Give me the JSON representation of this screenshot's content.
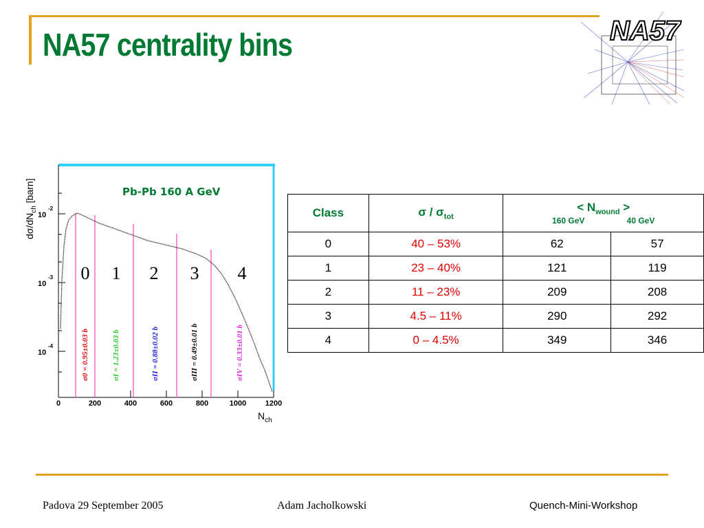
{
  "slide": {
    "title": "NA57 centrality bins",
    "logo_text": "NA57"
  },
  "plot": {
    "energy_label": "Pb-Pb 160 A GeV",
    "y_axis_label": "dσ/dN",
    "y_axis_sub": "ch",
    "y_axis_unit": "[barn]",
    "x_axis_label": "N",
    "x_axis_sub": "ch",
    "y_ticks": [
      "10",
      "10",
      "10"
    ],
    "y_tick_exps": [
      "-2",
      "-3",
      "-4"
    ],
    "x_ticks": [
      "0",
      "200",
      "400",
      "600",
      "800",
      "1000",
      "1200"
    ],
    "bin_numbers": [
      "0",
      "1",
      "2",
      "3",
      "4"
    ],
    "sigma_labels": [
      {
        "text": "σ0 = 0.95±0.03 b",
        "color": "#e00000"
      },
      {
        "text": "σI = 1.23±0.03 b",
        "color": "#22cc22"
      },
      {
        "text": "σII = 0.88±0.02 b",
        "color": "#1a1aee"
      },
      {
        "text": "σIII = 0.49±0.01 b",
        "color": "#000000"
      },
      {
        "text": "σIV = 0.33±0.01 b",
        "color": "#dd22dd"
      }
    ]
  },
  "table": {
    "headers": {
      "class": "Class",
      "sigma": "σ / σ",
      "sigma_sub": "tot",
      "nwound": "< N",
      "nwound_sub": "wound",
      "nwound_end": " >",
      "energy1": "160 GeV",
      "energy2": "40 GeV"
    },
    "rows": [
      {
        "cls": "0",
        "frac": "40 – 53%",
        "n160": "62",
        "n40": "57"
      },
      {
        "cls": "1",
        "frac": "23 – 40%",
        "n160": "121",
        "n40": "119"
      },
      {
        "cls": "2",
        "frac": "11 – 23%",
        "n160": "209",
        "n40": "208"
      },
      {
        "cls": "3",
        "frac": "4.5 – 11%",
        "n160": "290",
        "n40": "292"
      },
      {
        "cls": "4",
        "frac": "0 – 4.5%",
        "n160": "349",
        "n40": "346"
      }
    ]
  },
  "footer": {
    "left": "Padova 29 September 2005",
    "center": "Adam Jacholkowski",
    "right": "Quench-Mini-Workshop"
  },
  "colors": {
    "title": "#007a33",
    "accent": "#e2a21a",
    "red": "#e00000"
  }
}
